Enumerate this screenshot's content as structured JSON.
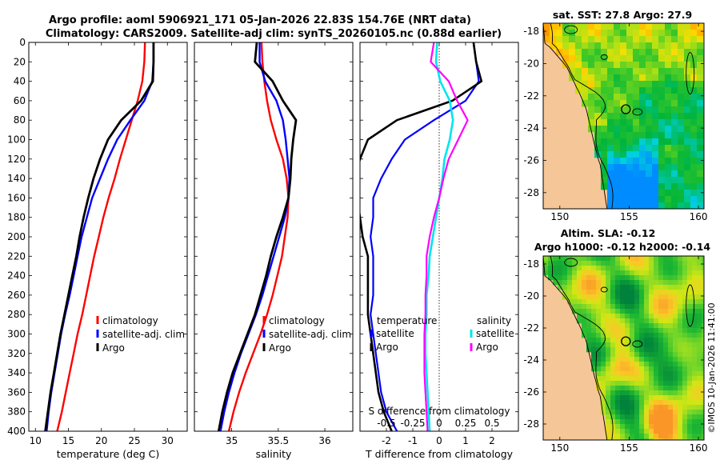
{
  "titles": {
    "line1": "Argo profile: aoml 5906921_171 05-Jan-2026 22.83S 154.76E (NRT data)",
    "line2": "Climatology: CARS2009. Satellite-adj clim: synTS_20260105.nc (0.88d earlier)",
    "sst": "sat. SST: 27.8 Argo: 27.9",
    "sla1": "Altim. SLA: -0.12",
    "sla2": "Argo h1000: -0.12 h2000: -0.14",
    "stamp": "©IMOS 10-Jan-2026 11:41:00"
  },
  "colors": {
    "climatology": "#ff0000",
    "satellite": "#0000ff",
    "argo": "#000000",
    "sat_diff": "#00e5ee",
    "argo_diff": "#ff00ff",
    "land": "#f5c697"
  },
  "legend": {
    "climatology": "climatology",
    "satellite": "satellite-adj. clim",
    "argo": "Argo",
    "temperature": "temperature",
    "salinity": "salinity",
    "satellite_short": "satellite"
  },
  "chart_data": [
    {
      "type": "line",
      "id": "temperature",
      "xlabel": "temperature (deg C)",
      "xlim": [
        9,
        33
      ],
      "xticks": [
        10,
        15,
        20,
        25,
        30
      ],
      "ylim": [
        0,
        400
      ],
      "yticks": [
        0,
        20,
        40,
        60,
        80,
        100,
        120,
        140,
        160,
        180,
        200,
        220,
        240,
        260,
        280,
        300,
        320,
        340,
        360,
        380,
        400
      ],
      "series": [
        {
          "name": "climatology",
          "points": [
            [
              26.6,
              0
            ],
            [
              26.5,
              20
            ],
            [
              26.2,
              40
            ],
            [
              25.5,
              60
            ],
            [
              24.6,
              80
            ],
            [
              23.7,
              100
            ],
            [
              22.8,
              120
            ],
            [
              22.0,
              140
            ],
            [
              21.1,
              160
            ],
            [
              20.3,
              180
            ],
            [
              19.6,
              200
            ],
            [
              18.9,
              220
            ],
            [
              18.3,
              240
            ],
            [
              17.7,
              260
            ],
            [
              17.1,
              280
            ],
            [
              16.4,
              300
            ],
            [
              15.8,
              320
            ],
            [
              15.2,
              340
            ],
            [
              14.6,
              360
            ],
            [
              14.0,
              380
            ],
            [
              13.3,
              400
            ]
          ]
        },
        {
          "name": "satellite-adj. clim",
          "points": [
            [
              27.9,
              0
            ],
            [
              27.9,
              20
            ],
            [
              27.7,
              40
            ],
            [
              26.5,
              60
            ],
            [
              24.4,
              80
            ],
            [
              22.4,
              100
            ],
            [
              21.0,
              120
            ],
            [
              19.8,
              140
            ],
            [
              18.6,
              160
            ],
            [
              17.8,
              180
            ],
            [
              17.0,
              200
            ],
            [
              16.4,
              220
            ],
            [
              15.8,
              240
            ],
            [
              15.2,
              260
            ],
            [
              14.5,
              280
            ],
            [
              13.9,
              300
            ],
            [
              13.4,
              320
            ],
            [
              12.9,
              340
            ],
            [
              12.4,
              360
            ],
            [
              12.0,
              380
            ],
            [
              11.7,
              400
            ]
          ]
        },
        {
          "name": "Argo",
          "points": [
            [
              27.9,
              0
            ],
            [
              27.9,
              20
            ],
            [
              27.8,
              40
            ],
            [
              26.0,
              60
            ],
            [
              23.0,
              80
            ],
            [
              21.0,
              100
            ],
            [
              19.8,
              120
            ],
            [
              18.8,
              140
            ],
            [
              18.0,
              160
            ],
            [
              17.3,
              180
            ],
            [
              16.7,
              200
            ],
            [
              16.2,
              220
            ],
            [
              15.6,
              240
            ],
            [
              15.0,
              260
            ],
            [
              14.4,
              280
            ],
            [
              13.8,
              300
            ],
            [
              13.3,
              320
            ],
            [
              12.8,
              340
            ],
            [
              12.3,
              360
            ],
            [
              11.9,
              380
            ],
            [
              11.5,
              400
            ]
          ]
        }
      ]
    },
    {
      "type": "line",
      "id": "salinity",
      "xlabel": "salinity",
      "xlim": [
        34.6,
        36.3
      ],
      "xticks": [
        35,
        35.5,
        36
      ],
      "ylim": [
        0,
        400
      ],
      "series": [
        {
          "name": "climatology",
          "points": [
            [
              35.32,
              0
            ],
            [
              35.33,
              20
            ],
            [
              35.35,
              40
            ],
            [
              35.38,
              60
            ],
            [
              35.42,
              80
            ],
            [
              35.48,
              100
            ],
            [
              35.55,
              120
            ],
            [
              35.59,
              140
            ],
            [
              35.61,
              160
            ],
            [
              35.6,
              180
            ],
            [
              35.57,
              200
            ],
            [
              35.54,
              220
            ],
            [
              35.49,
              240
            ],
            [
              35.44,
              260
            ],
            [
              35.38,
              280
            ],
            [
              35.31,
              300
            ],
            [
              35.23,
              320
            ],
            [
              35.15,
              340
            ],
            [
              35.08,
              360
            ],
            [
              35.02,
              380
            ],
            [
              34.97,
              400
            ]
          ]
        },
        {
          "name": "satellite-adj. clim",
          "points": [
            [
              35.3,
              0
            ],
            [
              35.3,
              20
            ],
            [
              35.36,
              40
            ],
            [
              35.48,
              60
            ],
            [
              35.55,
              80
            ],
            [
              35.58,
              100
            ],
            [
              35.6,
              120
            ],
            [
              35.62,
              140
            ],
            [
              35.61,
              160
            ],
            [
              35.57,
              180
            ],
            [
              35.51,
              200
            ],
            [
              35.45,
              220
            ],
            [
              35.39,
              240
            ],
            [
              35.33,
              260
            ],
            [
              35.26,
              280
            ],
            [
              35.18,
              300
            ],
            [
              35.1,
              320
            ],
            [
              35.03,
              340
            ],
            [
              34.97,
              360
            ],
            [
              34.92,
              380
            ],
            [
              34.88,
              400
            ]
          ]
        },
        {
          "name": "Argo",
          "points": [
            [
              35.27,
              0
            ],
            [
              35.25,
              20
            ],
            [
              35.44,
              40
            ],
            [
              35.55,
              60
            ],
            [
              35.69,
              80
            ],
            [
              35.66,
              100
            ],
            [
              35.64,
              120
            ],
            [
              35.63,
              140
            ],
            [
              35.61,
              160
            ],
            [
              35.55,
              180
            ],
            [
              35.48,
              200
            ],
            [
              35.42,
              220
            ],
            [
              35.37,
              240
            ],
            [
              35.31,
              260
            ],
            [
              35.25,
              280
            ],
            [
              35.17,
              300
            ],
            [
              35.09,
              320
            ],
            [
              35.01,
              340
            ],
            [
              34.95,
              360
            ],
            [
              34.9,
              380
            ],
            [
              34.86,
              400
            ]
          ]
        }
      ]
    },
    {
      "type": "line",
      "id": "difference",
      "xlabel": "T difference from climatology",
      "xlabel_top": "S difference from climatology",
      "xlim": [
        -3,
        3
      ],
      "xticks": [
        -2,
        -1,
        0,
        1,
        2
      ],
      "top_xticks": [
        -0.5,
        -0.25,
        0,
        0.25,
        0.5
      ],
      "top_xticklabels": [
        "-0.5",
        "-0.25",
        "0",
        "0.25",
        "0.5"
      ],
      "ylim": [
        0,
        400
      ],
      "series": [
        {
          "name": "satellite temperature",
          "points": [
            [
              1.3,
              0
            ],
            [
              1.4,
              20
            ],
            [
              1.5,
              40
            ],
            [
              1.0,
              60
            ],
            [
              -0.2,
              80
            ],
            [
              -1.3,
              100
            ],
            [
              -1.8,
              120
            ],
            [
              -2.2,
              140
            ],
            [
              -2.5,
              160
            ],
            [
              -2.5,
              180
            ],
            [
              -2.6,
              200
            ],
            [
              -2.5,
              220
            ],
            [
              -2.5,
              240
            ],
            [
              -2.5,
              260
            ],
            [
              -2.6,
              280
            ],
            [
              -2.5,
              300
            ],
            [
              -2.4,
              320
            ],
            [
              -2.3,
              340
            ],
            [
              -2.2,
              360
            ],
            [
              -2.0,
              380
            ],
            [
              -1.6,
              400
            ]
          ]
        },
        {
          "name": "Argo temperature",
          "points": [
            [
              1.3,
              0
            ],
            [
              1.4,
              20
            ],
            [
              1.6,
              40
            ],
            [
              0.5,
              60
            ],
            [
              -1.6,
              80
            ],
            [
              -2.7,
              100
            ],
            [
              -3.0,
              120
            ],
            [
              -3.2,
              140
            ],
            [
              -3.1,
              160
            ],
            [
              -3.0,
              180
            ],
            [
              -2.9,
              200
            ],
            [
              -2.7,
              220
            ],
            [
              -2.7,
              240
            ],
            [
              -2.7,
              260
            ],
            [
              -2.7,
              280
            ],
            [
              -2.6,
              300
            ],
            [
              -2.5,
              320
            ],
            [
              -2.4,
              340
            ],
            [
              -2.3,
              360
            ],
            [
              -2.1,
              380
            ],
            [
              -1.8,
              400
            ]
          ]
        },
        {
          "name": "satellite salinity",
          "points": [
            [
              -0.02,
              0
            ],
            [
              -0.03,
              20
            ],
            [
              0.01,
              40
            ],
            [
              0.1,
              60
            ],
            [
              0.13,
              80
            ],
            [
              0.1,
              100
            ],
            [
              0.05,
              120
            ],
            [
              0.03,
              140
            ],
            [
              0.0,
              160
            ],
            [
              -0.03,
              180
            ],
            [
              -0.06,
              200
            ],
            [
              -0.09,
              220
            ],
            [
              -0.1,
              240
            ],
            [
              -0.12,
              260
            ],
            [
              -0.12,
              280
            ],
            [
              -0.13,
              300
            ],
            [
              -0.13,
              320
            ],
            [
              -0.12,
              340
            ],
            [
              -0.11,
              360
            ],
            [
              -0.1,
              380
            ],
            [
              -0.09,
              400
            ]
          ]
        },
        {
          "name": "Argo salinity",
          "points": [
            [
              -0.05,
              0
            ],
            [
              -0.08,
              20
            ],
            [
              0.09,
              40
            ],
            [
              0.17,
              60
            ],
            [
              0.27,
              80
            ],
            [
              0.18,
              100
            ],
            [
              0.09,
              120
            ],
            [
              0.04,
              140
            ],
            [
              0.0,
              160
            ],
            [
              -0.05,
              180
            ],
            [
              -0.09,
              200
            ],
            [
              -0.12,
              220
            ],
            [
              -0.12,
              240
            ],
            [
              -0.13,
              260
            ],
            [
              -0.13,
              280
            ],
            [
              -0.14,
              300
            ],
            [
              -0.14,
              320
            ],
            [
              -0.14,
              340
            ],
            [
              -0.13,
              360
            ],
            [
              -0.12,
              380
            ],
            [
              -0.11,
              400
            ]
          ]
        }
      ]
    },
    {
      "type": "heatmap",
      "id": "sst_map",
      "title": "sat. SST: 27.8 Argo: 27.9",
      "xlim": [
        148.8,
        160.4
      ],
      "ylim": [
        -29,
        -17.5
      ],
      "xticks": [
        150,
        155,
        160
      ],
      "yticks": [
        -18,
        -20,
        -22,
        -24,
        -26,
        -28
      ],
      "argo_position": [
        154.76,
        -22.83
      ]
    },
    {
      "type": "heatmap",
      "id": "sla_map",
      "title": "Altim. SLA: -0.12",
      "subtitle": "Argo h1000: -0.12 h2000: -0.14",
      "xlim": [
        148.8,
        160.4
      ],
      "ylim": [
        -29,
        -17.5
      ],
      "xticks": [
        150,
        155,
        160
      ],
      "yticks": [
        -18,
        -20,
        -22,
        -24,
        -26,
        -28
      ],
      "argo_position": [
        154.76,
        -22.83
      ]
    }
  ]
}
